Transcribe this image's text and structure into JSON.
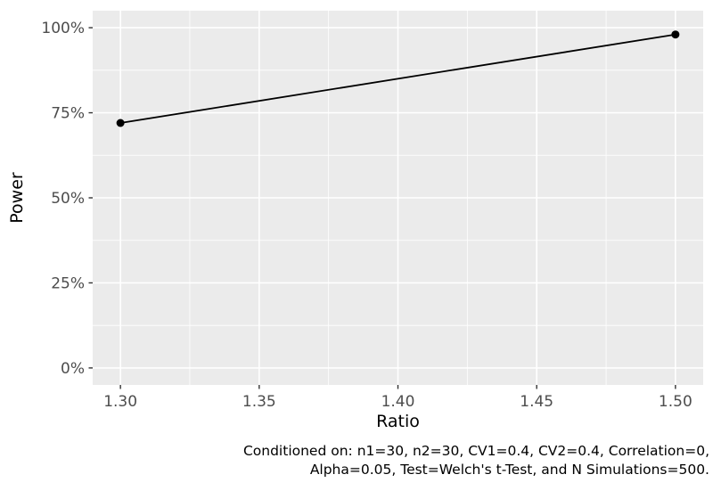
{
  "chart_data": {
    "type": "line",
    "title": "",
    "xlabel": "Ratio",
    "ylabel": "Power",
    "x": [
      1.3,
      1.5
    ],
    "series": [
      {
        "name": "Power",
        "values": [
          72,
          98
        ]
      }
    ],
    "y_unit": "%",
    "xlim": [
      1.29,
      1.51
    ],
    "ylim": [
      -5,
      105
    ],
    "x_tick_values": [
      1.3,
      1.35,
      1.4,
      1.45,
      1.5
    ],
    "x_tick_labels": [
      "1.30",
      "1.35",
      "1.40",
      "1.45",
      "1.50"
    ],
    "y_tick_values": [
      0,
      25,
      50,
      75,
      100
    ],
    "y_tick_labels": [
      "0%",
      "25%",
      "50%",
      "75%",
      "100%"
    ],
    "x_minor_values": [
      1.325,
      1.375,
      1.425,
      1.475
    ],
    "y_minor_values": [
      12.5,
      37.5,
      62.5,
      87.5
    ],
    "grid": "on",
    "legend": "none",
    "panel_bg": "#EBEBEB",
    "grid_color": "#FFFFFF",
    "line_color": "#000000",
    "point_color": "#000000",
    "tick_mark_color": "#333333",
    "tick_label_color": "#4D4D4D",
    "caption_lines": [
      "Conditioned on: n1=30, n2=30, CV1=0.4, CV2=0.4, Correlation=0,",
      "Alpha=0.05, Test=Welch's t-Test, and N Simulations=500."
    ]
  }
}
